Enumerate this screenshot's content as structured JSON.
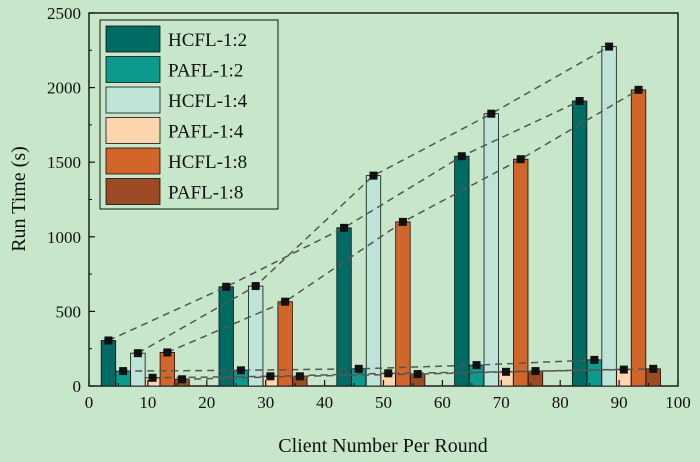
{
  "chart_data": {
    "type": "bar",
    "title": "",
    "xlabel": "Client Number Per Round",
    "ylabel": "Run Time (s)",
    "xlim": [
      0,
      100
    ],
    "ylim": [
      0,
      2500
    ],
    "x_ticks": [
      0,
      10,
      20,
      30,
      40,
      50,
      60,
      70,
      80,
      90,
      100
    ],
    "y_ticks": [
      0,
      500,
      1000,
      1500,
      2000,
      2500
    ],
    "grid": false,
    "legend_position": "top-left",
    "groups": [
      10,
      30,
      50,
      70,
      90
    ],
    "series": [
      {
        "name": "HCFL-1:2",
        "color": "#006b63",
        "x": [
          3.3,
          23.3,
          43.3,
          63.3,
          83.3
        ],
        "values": [
          305,
          665,
          1060,
          1540,
          1910
        ]
      },
      {
        "name": "PAFL-1:2",
        "color": "#0c9a8c",
        "x": [
          5.8,
          25.8,
          45.8,
          65.8,
          85.8
        ],
        "values": [
          100,
          105,
          115,
          140,
          175
        ]
      },
      {
        "name": "HCFL-1:4",
        "color": "#bde4d6",
        "x": [
          8.3,
          28.3,
          48.3,
          68.3,
          88.3
        ],
        "values": [
          220,
          670,
          1410,
          1825,
          2275
        ]
      },
      {
        "name": "PAFL-1:4",
        "color": "#fbd5ad",
        "x": [
          10.8,
          30.8,
          50.8,
          70.8,
          90.8
        ],
        "values": [
          55,
          65,
          85,
          95,
          110
        ]
      },
      {
        "name": "HCFL-1:8",
        "color": "#d2652a",
        "x": [
          13.3,
          33.3,
          53.3,
          73.3,
          93.3
        ],
        "values": [
          225,
          565,
          1100,
          1520,
          1985
        ]
      },
      {
        "name": "PAFL-1:8",
        "color": "#9b4a25",
        "x": [
          15.8,
          35.8,
          55.8,
          75.8,
          95.8
        ],
        "values": [
          45,
          65,
          80,
          100,
          115
        ]
      }
    ],
    "trend_lines": "dashed lines connecting the tops of each series' bars"
  }
}
